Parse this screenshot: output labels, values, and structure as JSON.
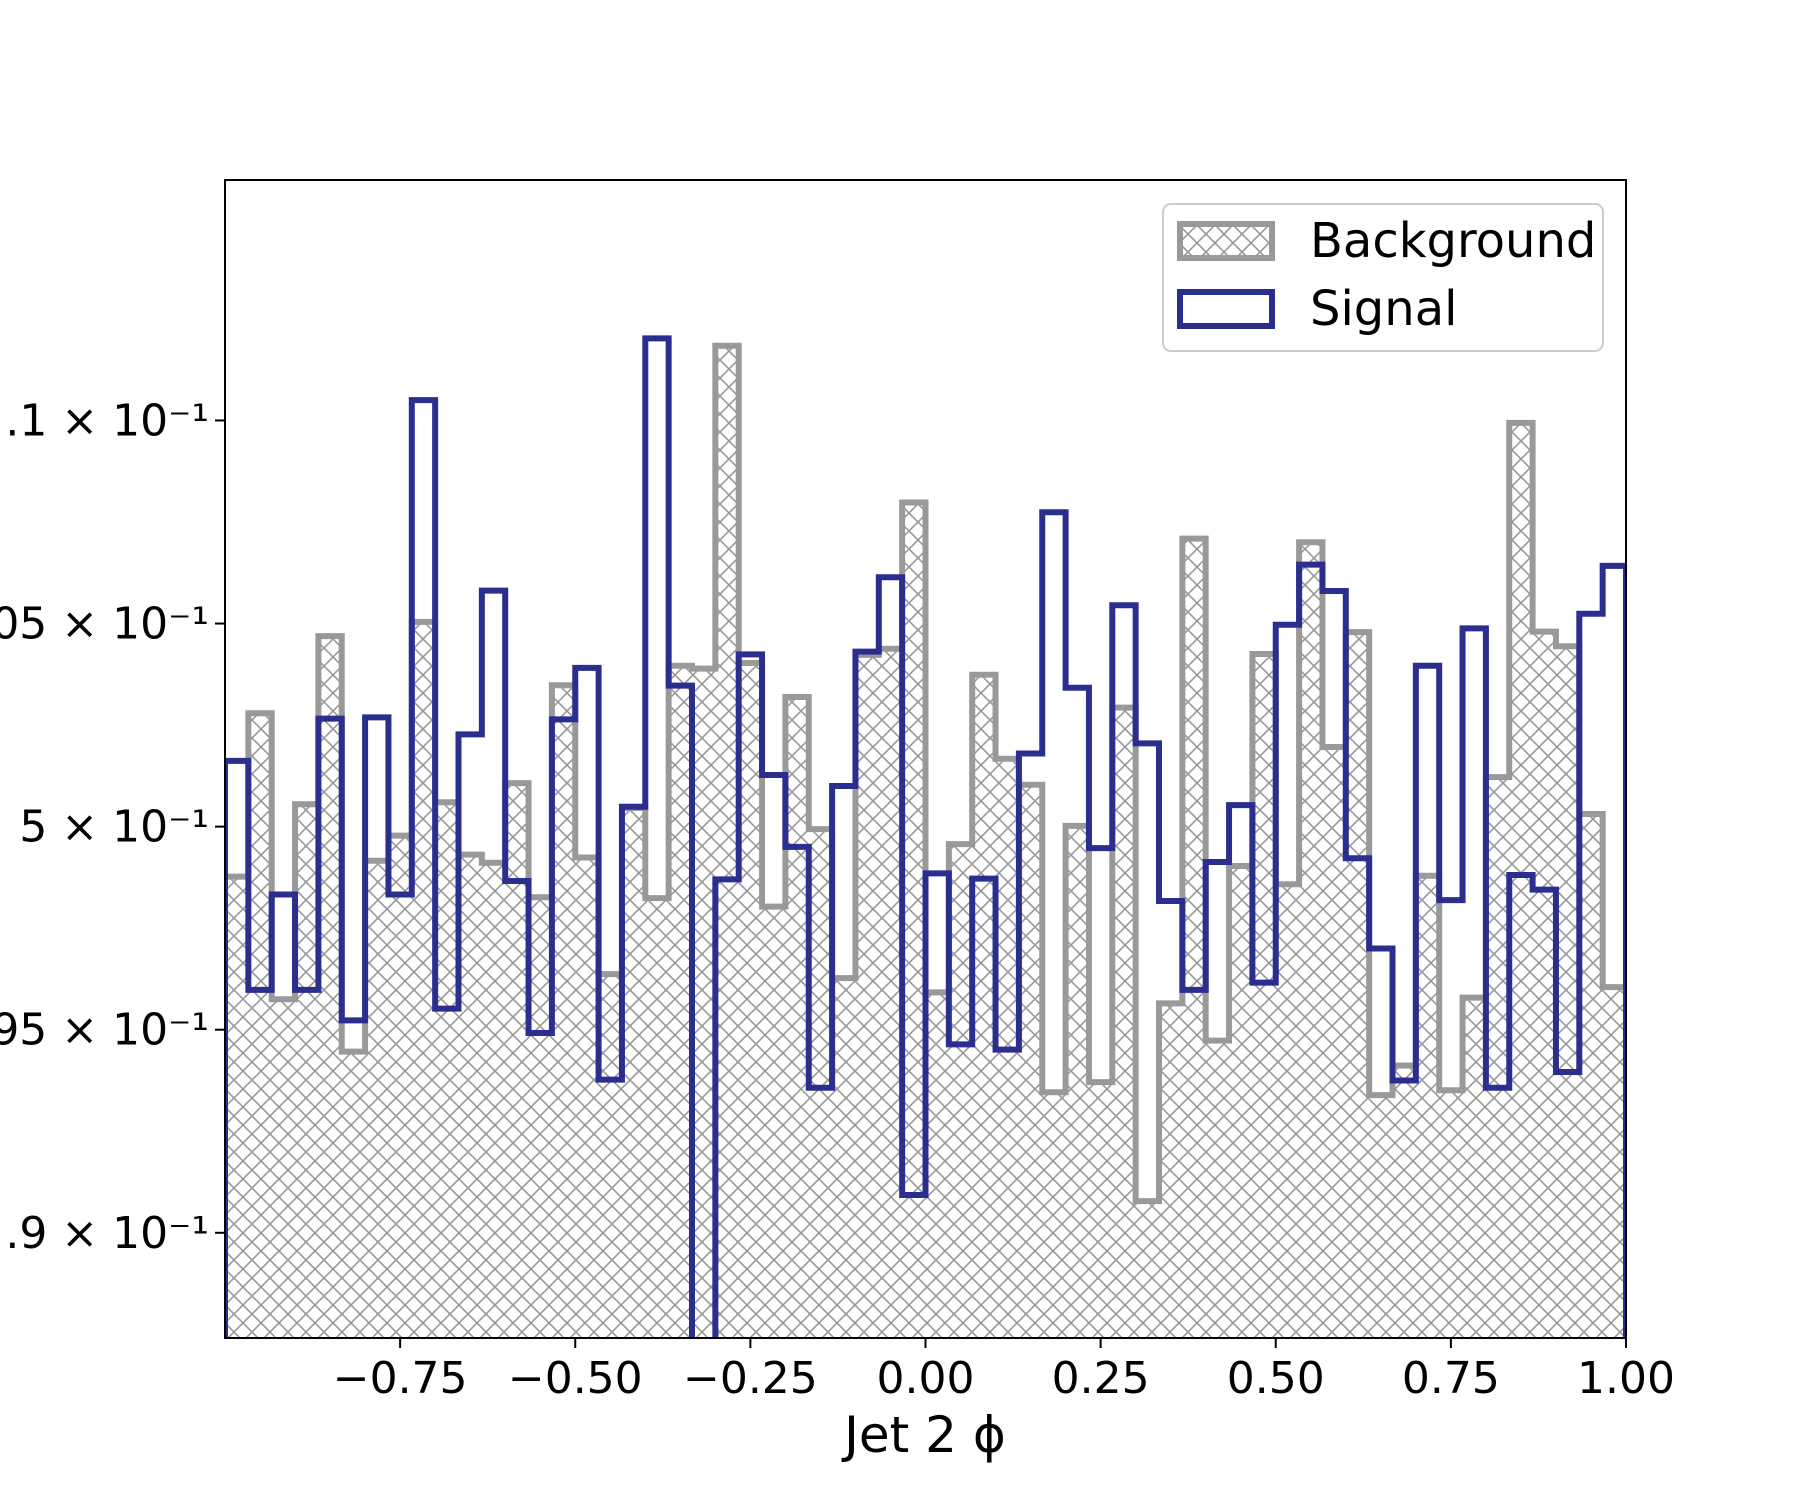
{
  "chart_data": {
    "type": "histogram",
    "xlabel": "Jet 2 ϕ",
    "xlim": [
      -1.0,
      1.0
    ],
    "ylim": [
      0.8741,
      1.1592
    ],
    "x_ticks": [
      {
        "value": -0.75,
        "label": "−0.75"
      },
      {
        "value": -0.5,
        "label": "−0.50"
      },
      {
        "value": -0.25,
        "label": "−0.25"
      },
      {
        "value": 0.0,
        "label": "0.00"
      },
      {
        "value": 0.25,
        "label": "0.25"
      },
      {
        "value": 0.5,
        "label": "0.50"
      },
      {
        "value": 0.75,
        "label": "0.75"
      },
      {
        "value": 1.0,
        "label": "1.00"
      }
    ],
    "y_ticks": [
      {
        "value": 0.9,
        "label": ".9 × 10⁻¹"
      },
      {
        "value": 0.95,
        "label": "95 × 10⁻¹"
      },
      {
        "value": 1.0,
        "label": "5 × 10⁻¹"
      },
      {
        "value": 1.05,
        "label": "05 × 10⁻¹"
      },
      {
        "value": 1.1,
        "label": ".1 × 10⁻¹"
      }
    ],
    "bin_edges": [
      -1.0,
      0.0
    ],
    "bins": 60,
    "series": [
      {
        "name": "Background",
        "style": "hatched-step-filled",
        "color": "#999999",
        "values": [
          0.9877,
          1.0279,
          0.9575,
          1.0055,
          1.0469,
          0.9446,
          0.9916,
          0.9978,
          1.0504,
          1.006,
          0.9931,
          0.9911,
          1.0107,
          0.9826,
          1.0348,
          0.9924,
          0.9637,
          1.0046,
          0.9824,
          1.0396,
          1.0389,
          1.1184,
          1.0403,
          0.9803,
          1.0319,
          0.9994,
          0.9627,
          1.0423,
          1.0438,
          1.0798,
          0.9592,
          0.9957,
          1.0374,
          1.0167,
          1.0103,
          0.9346,
          1.0002,
          0.9371,
          1.0293,
          0.9078,
          0.9565,
          1.0709,
          0.9473,
          0.9903,
          1.0425,
          0.9858,
          1.07,
          1.0196,
          1.0479,
          0.9339,
          0.9412,
          0.9879,
          0.9351,
          0.9579,
          1.0122,
          1.0994,
          1.048,
          1.0444,
          1.0031,
          0.9605
        ]
      },
      {
        "name": "Signal",
        "style": "step",
        "color": "#2a2e8f",
        "values": [
          1.0162,
          0.9598,
          0.9833,
          0.9598,
          1.0266,
          0.9523,
          1.0269,
          0.9833,
          1.105,
          0.9552,
          1.0227,
          1.0581,
          0.9866,
          0.9492,
          1.0264,
          1.0391,
          0.9377,
          1.0049,
          1.1202,
          1.0347,
          0.8711,
          0.987,
          1.0424,
          1.0127,
          0.995,
          0.9357,
          1.01,
          1.0431,
          1.0614,
          0.9093,
          0.9885,
          0.9464,
          0.9872,
          0.9451,
          1.018,
          1.0774,
          1.0342,
          0.9947,
          1.0545,
          1.0205,
          0.9817,
          0.9598,
          0.9913,
          1.0053,
          0.9616,
          1.0497,
          1.0645,
          1.058,
          0.9922,
          0.97,
          0.9375,
          1.0396,
          0.9819,
          1.0488,
          0.9357,
          0.9881,
          0.9845,
          0.9396,
          1.0524,
          1.0642
        ]
      }
    ],
    "legend": {
      "position": "top-right",
      "entries": [
        "Background",
        "Signal"
      ]
    },
    "grid": false
  }
}
